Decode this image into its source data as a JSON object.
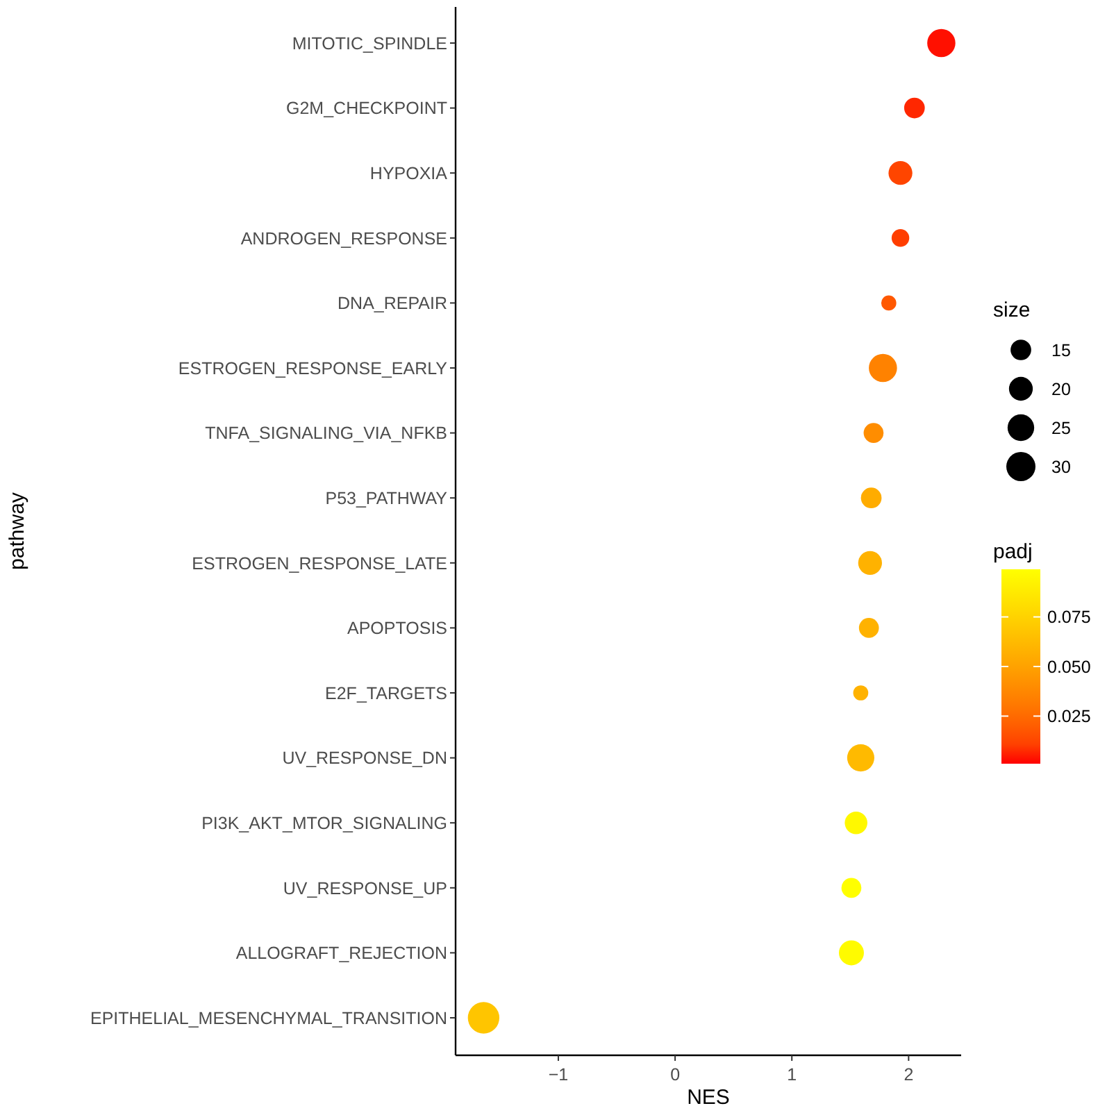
{
  "chart_data": {
    "type": "bubble",
    "xlabel": "NES",
    "ylabel": "pathway",
    "legend_title": "size",
    "clabel": "padj",
    "categories": [
      "MITOTIC_SPINDLE",
      "G2M_CHECKPOINT",
      "HYPOXIA",
      "ANDROGEN_RESPONSE",
      "DNA_REPAIR",
      "ESTROGEN_RESPONSE_EARLY",
      "TNFA_SIGNALING_VIA_NFKB",
      "P53_PATHWAY",
      "ESTROGEN_RESPONSE_LATE",
      "APOPTOSIS",
      "E2F_TARGETS",
      "UV_RESPONSE_DN",
      "PI3K_AKT_MTOR_SIGNALING",
      "UV_RESPONSE_UP",
      "ALLOGRAFT_REJECTION",
      "EPITHELIAL_MESENCHYMAL_TRANSITION"
    ],
    "orientation": "horizontal",
    "values": [
      2.28,
      2.05,
      1.93,
      1.93,
      1.83,
      1.78,
      1.7,
      1.68,
      1.67,
      1.66,
      1.59,
      1.59,
      1.55,
      1.51,
      1.51,
      -1.64
    ],
    "sizes": [
      28,
      15,
      20,
      11,
      8,
      28,
      14,
      15,
      20,
      14,
      8,
      26,
      18,
      14,
      22,
      35
    ],
    "cvalues": [
      0.002,
      0.005,
      0.012,
      0.01,
      0.018,
      0.035,
      0.04,
      0.055,
      0.058,
      0.058,
      0.058,
      0.062,
      0.095,
      0.099,
      0.097,
      0.068
    ],
    "size_legend": [
      15,
      20,
      25,
      30
    ],
    "clim": [
      0.001,
      0.099
    ],
    "cticks": [
      0.025,
      {
        "value": 0.05,
        "label": "0.050"
      },
      0.075
    ],
    "xlim": [
      -1.88,
      2.45
    ],
    "xticks": [
      {
        "value": -1,
        "label": "−1"
      },
      0,
      1,
      2
    ],
    "grid": false
  }
}
